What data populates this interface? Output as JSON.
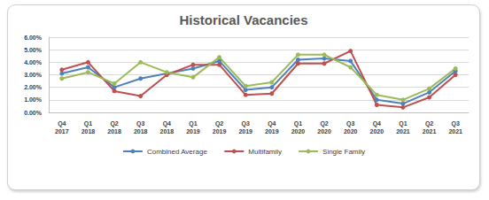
{
  "chart_data": {
    "type": "line",
    "title": "Historical Vacancies",
    "categories": [
      "Q4 2017",
      "Q1 2018",
      "Q2 2018",
      "Q3 2018",
      "Q4 2018",
      "Q1 2019",
      "Q2 2019",
      "Q3 2019",
      "Q4 2019",
      "Q1 2020",
      "Q2 2020",
      "Q3 2020",
      "Q4 2020",
      "Q1 2021",
      "Q2 2021",
      "Q3 2021"
    ],
    "series": [
      {
        "name": "Combined Average",
        "color": "#4f81bd",
        "values": [
          3.1,
          3.6,
          2.0,
          2.7,
          3.1,
          3.5,
          4.1,
          1.8,
          2.0,
          4.2,
          4.3,
          4.1,
          1.0,
          0.7,
          1.6,
          3.3
        ]
      },
      {
        "name": "Multifamily",
        "color": "#c0504d",
        "values": [
          3.4,
          4.0,
          1.7,
          1.3,
          3.0,
          3.8,
          3.8,
          1.4,
          1.5,
          3.9,
          3.9,
          4.9,
          0.6,
          0.4,
          1.2,
          3.0
        ]
      },
      {
        "name": "Single Family",
        "color": "#9bbb59",
        "values": [
          2.7,
          3.2,
          2.3,
          4.0,
          3.2,
          2.8,
          4.4,
          2.1,
          2.4,
          4.6,
          4.6,
          3.6,
          1.4,
          1.0,
          1.9,
          3.5
        ]
      }
    ],
    "ylim": [
      0,
      6
    ],
    "yticks": [
      {
        "value": 0,
        "label": "0.00%"
      },
      {
        "value": 1,
        "label": "1.00%"
      },
      {
        "value": 2,
        "label": "2.00%"
      },
      {
        "value": 3,
        "label": "3.00%"
      },
      {
        "value": 4,
        "label": "4.00%"
      },
      {
        "value": 5,
        "label": "5.00%"
      },
      {
        "value": 6,
        "label": "6.00%"
      }
    ],
    "grid": true,
    "marker": "circle",
    "legend": "bottom"
  }
}
